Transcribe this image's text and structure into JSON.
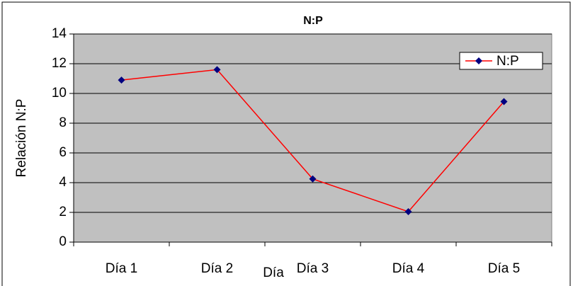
{
  "chart_data": {
    "type": "line",
    "title": "N:P",
    "xlabel": "Día",
    "ylabel": "Relación N:P",
    "categories": [
      "Día 1",
      "Día 2",
      "Día 3",
      "Día 4",
      "Día 5"
    ],
    "series": [
      {
        "name": "N:P",
        "color": "#ff0000",
        "marker_color": "#000080",
        "values": [
          10.9,
          11.6,
          4.25,
          2.05,
          9.45
        ]
      }
    ],
    "ylim": [
      0,
      14
    ],
    "yticks": [
      0,
      2,
      4,
      6,
      8,
      10,
      12,
      14
    ],
    "grid": true,
    "legend": "upper right",
    "plot_background": "#c0c0c0"
  }
}
